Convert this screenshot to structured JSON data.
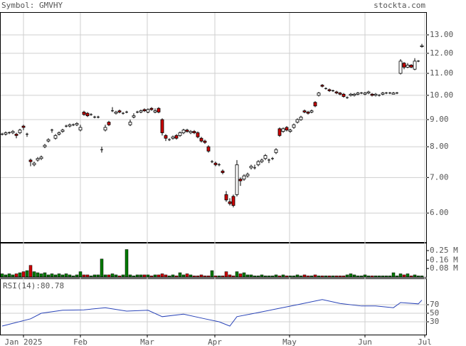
{
  "chart_data": {
    "type": "candlestick",
    "title": "Symbol: GMVHY",
    "source": "stockta.com",
    "xlim": [
      -0.6,
      119.4
    ],
    "xticks": [
      {
        "value": 6,
        "label": "Jan 2025"
      },
      {
        "value": 22,
        "label": "Feb"
      },
      {
        "value": 40.8,
        "label": "Mar"
      },
      {
        "value": 59.8,
        "label": "Apr"
      },
      {
        "value": 80.8,
        "label": "May"
      },
      {
        "value": 102,
        "label": "Jun"
      },
      {
        "value": 118.8,
        "label": "Jul"
      }
    ],
    "ylim": [
      5.29,
      14.35
    ],
    "log": true,
    "grid": true,
    "yticks": [
      {
        "value": 13,
        "label": "13.00"
      },
      {
        "value": 12,
        "label": "12.00"
      },
      {
        "value": 11,
        "label": "11.00"
      },
      {
        "value": 10,
        "label": "10.00"
      },
      {
        "value": 9,
        "label": "9.00"
      },
      {
        "value": 8,
        "label": "8.00"
      },
      {
        "value": 7,
        "label": "7.00"
      },
      {
        "value": 6,
        "label": "6.00"
      }
    ],
    "up_color": "#ffffff",
    "down_color": "#cc0000",
    "candles": [
      [
        8.45,
        8.5,
        8.4,
        8.45
      ],
      [
        8.45,
        8.55,
        8.4,
        8.5
      ],
      [
        8.5,
        8.55,
        8.45,
        8.5
      ],
      [
        8.5,
        8.6,
        8.45,
        8.55
      ],
      [
        8.45,
        8.5,
        8.3,
        8.4
      ],
      [
        8.5,
        8.65,
        8.45,
        8.6
      ],
      [
        8.75,
        8.8,
        8.6,
        8.7
      ],
      [
        8.45,
        8.5,
        8.35,
        8.45
      ],
      [
        7.55,
        7.6,
        7.35,
        7.5
      ],
      [
        7.4,
        7.5,
        7.35,
        7.45
      ],
      [
        7.55,
        7.65,
        7.5,
        7.6
      ],
      [
        7.6,
        7.7,
        7.55,
        7.65
      ],
      [
        8.0,
        8.1,
        7.95,
        8.05
      ],
      [
        8.2,
        8.3,
        8.15,
        8.25
      ],
      [
        8.6,
        8.65,
        8.5,
        8.6
      ],
      [
        8.3,
        8.45,
        8.25,
        8.4
      ],
      [
        8.45,
        8.55,
        8.4,
        8.5
      ],
      [
        8.55,
        8.65,
        8.5,
        8.6
      ],
      [
        8.75,
        8.8,
        8.7,
        8.75
      ],
      [
        8.75,
        8.85,
        8.7,
        8.8
      ],
      [
        8.8,
        8.85,
        8.75,
        8.8
      ],
      [
        8.8,
        8.9,
        8.75,
        8.85
      ],
      [
        8.6,
        8.8,
        8.55,
        8.7
      ],
      [
        9.3,
        9.35,
        9.15,
        9.2
      ],
      [
        9.25,
        9.3,
        9.1,
        9.15
      ],
      [
        9.2,
        9.25,
        9.15,
        9.2
      ],
      [
        9.1,
        9.15,
        9.05,
        9.1
      ],
      [
        9.1,
        9.15,
        9.05,
        9.1
      ],
      [
        7.9,
        8.0,
        7.8,
        7.9
      ],
      [
        8.6,
        8.8,
        8.55,
        8.7
      ],
      [
        8.9,
        8.95,
        8.75,
        8.8
      ],
      [
        9.35,
        9.5,
        9.3,
        9.35
      ],
      [
        9.25,
        9.35,
        9.2,
        9.3
      ],
      [
        9.35,
        9.4,
        9.25,
        9.3
      ],
      [
        9.25,
        9.3,
        9.2,
        9.25
      ],
      [
        9.3,
        9.35,
        9.25,
        9.3
      ],
      [
        8.8,
        9.0,
        8.75,
        8.9
      ],
      [
        9.1,
        9.25,
        9.05,
        9.15
      ],
      [
        9.3,
        9.35,
        9.25,
        9.3
      ],
      [
        9.3,
        9.4,
        9.25,
        9.35
      ],
      [
        9.4,
        9.45,
        9.3,
        9.35
      ],
      [
        9.3,
        9.45,
        9.25,
        9.4
      ],
      [
        9.45,
        9.5,
        9.35,
        9.4
      ],
      [
        9.3,
        9.45,
        9.25,
        9.35
      ],
      [
        9.45,
        9.5,
        9.25,
        9.3
      ],
      [
        9.0,
        9.05,
        8.4,
        8.5
      ],
      [
        8.4,
        8.45,
        8.2,
        8.3
      ],
      [
        8.25,
        8.3,
        8.2,
        8.25
      ],
      [
        8.3,
        8.4,
        8.25,
        8.35
      ],
      [
        8.4,
        8.45,
        8.25,
        8.3
      ],
      [
        8.4,
        8.55,
        8.35,
        8.5
      ],
      [
        8.5,
        8.65,
        8.45,
        8.6
      ],
      [
        8.6,
        8.65,
        8.5,
        8.55
      ],
      [
        8.5,
        8.6,
        8.45,
        8.55
      ],
      [
        8.55,
        8.6,
        8.45,
        8.5
      ],
      [
        8.5,
        8.55,
        8.3,
        8.35
      ],
      [
        8.3,
        8.35,
        8.15,
        8.2
      ],
      [
        8.2,
        8.25,
        8.1,
        8.15
      ],
      [
        8.0,
        8.05,
        7.8,
        7.85
      ],
      [
        7.5,
        7.55,
        7.45,
        7.5
      ],
      [
        7.45,
        7.5,
        7.35,
        7.4
      ],
      [
        7.4,
        7.45,
        7.35,
        7.4
      ],
      [
        7.2,
        7.25,
        7.1,
        7.15
      ],
      [
        6.5,
        6.6,
        6.3,
        6.35
      ],
      [
        6.3,
        6.4,
        6.2,
        6.25
      ],
      [
        6.45,
        6.5,
        6.15,
        6.2
      ],
      [
        6.5,
        7.55,
        6.45,
        7.4
      ],
      [
        6.95,
        7.0,
        6.75,
        6.9
      ],
      [
        6.95,
        7.1,
        6.9,
        7.05
      ],
      [
        7.05,
        7.15,
        7.0,
        7.1
      ],
      [
        7.3,
        7.4,
        7.25,
        7.35
      ],
      [
        7.3,
        7.4,
        7.25,
        7.3
      ],
      [
        7.4,
        7.55,
        7.35,
        7.5
      ],
      [
        7.5,
        7.6,
        7.45,
        7.55
      ],
      [
        7.6,
        7.75,
        7.55,
        7.7
      ],
      [
        7.55,
        7.6,
        7.45,
        7.55
      ],
      [
        7.6,
        7.65,
        7.55,
        7.6
      ],
      [
        7.8,
        7.95,
        7.75,
        7.9
      ],
      [
        8.65,
        8.7,
        8.35,
        8.4
      ],
      [
        8.55,
        8.7,
        8.5,
        8.65
      ],
      [
        8.7,
        8.75,
        8.55,
        8.6
      ],
      [
        8.55,
        8.65,
        8.5,
        8.6
      ],
      [
        8.7,
        8.85,
        8.65,
        8.8
      ],
      [
        8.9,
        9.05,
        8.85,
        9.0
      ],
      [
        9.0,
        9.15,
        8.95,
        9.1
      ],
      [
        9.35,
        9.4,
        9.25,
        9.3
      ],
      [
        9.3,
        9.35,
        9.2,
        9.25
      ],
      [
        9.3,
        9.4,
        9.25,
        9.35
      ],
      [
        9.7,
        9.75,
        9.5,
        9.55
      ],
      [
        10.0,
        10.15,
        9.95,
        10.1
      ],
      [
        10.45,
        10.5,
        10.35,
        10.4
      ],
      [
        10.3,
        10.35,
        10.25,
        10.3
      ],
      [
        10.25,
        10.3,
        10.15,
        10.2
      ],
      [
        10.2,
        10.25,
        10.15,
        10.2
      ],
      [
        10.15,
        10.2,
        10.05,
        10.1
      ],
      [
        10.1,
        10.15,
        10.0,
        10.05
      ],
      [
        10.05,
        10.1,
        9.9,
        9.95
      ],
      [
        9.9,
        9.95,
        9.85,
        9.9
      ],
      [
        10.0,
        10.1,
        9.95,
        10.05
      ],
      [
        10.0,
        10.1,
        9.95,
        10.05
      ],
      [
        10.05,
        10.15,
        10.0,
        10.1
      ],
      [
        10.1,
        10.15,
        10.05,
        10.1
      ],
      [
        10.05,
        10.15,
        10.0,
        10.1
      ],
      [
        10.1,
        10.2,
        10.05,
        10.15
      ],
      [
        10.05,
        10.1,
        9.95,
        10.0
      ],
      [
        10.0,
        10.1,
        9.95,
        10.05
      ],
      [
        10.0,
        10.05,
        9.95,
        10.0
      ],
      [
        10.05,
        10.15,
        10.0,
        10.1
      ],
      [
        10.1,
        10.15,
        10.05,
        10.1
      ],
      [
        10.1,
        10.15,
        10.05,
        10.1
      ],
      [
        10.05,
        10.15,
        10.05,
        10.1
      ],
      [
        10.1,
        10.15,
        10.05,
        10.1
      ],
      [
        11.0,
        11.7,
        10.95,
        11.6
      ],
      [
        11.5,
        11.55,
        11.2,
        11.3
      ],
      [
        11.3,
        11.5,
        11.25,
        11.4
      ],
      [
        11.4,
        11.45,
        11.25,
        11.3
      ],
      [
        11.2,
        11.75,
        11.15,
        11.6
      ],
      [
        11.6,
        11.65,
        11.55,
        11.6
      ],
      [
        12.35,
        12.5,
        12.3,
        12.4
      ]
    ],
    "volume": {
      "ylim": [
        0,
        0.324
      ],
      "up_color": "#007a00",
      "down_color": "#cc0000",
      "yticks": [
        {
          "value": 0.25,
          "label": "0.25 M"
        },
        {
          "value": 0.16,
          "label": "0.16 M"
        },
        {
          "value": 0.08,
          "label": "0.08 M"
        }
      ],
      "values": [
        0.03,
        0.02,
        0.03,
        0.02,
        0.03,
        0.04,
        0.05,
        0.06,
        0.11,
        0.05,
        0.04,
        0.03,
        0.04,
        0.02,
        0.03,
        0.02,
        0.03,
        0.02,
        0.03,
        0.02,
        0.01,
        0.02,
        0.05,
        0.02,
        0.02,
        0.01,
        0.02,
        0.02,
        0.17,
        0.02,
        0.02,
        0.03,
        0.02,
        0.01,
        0.02,
        0.26,
        0.02,
        0.01,
        0.02,
        0.02,
        0.02,
        0.02,
        0.01,
        0.02,
        0.02,
        0.03,
        0.02,
        0.01,
        0.02,
        0.01,
        0.04,
        0.02,
        0.03,
        0.02,
        0.01,
        0.01,
        0.02,
        0.01,
        0.01,
        0.06,
        0.01,
        0.01,
        0.01,
        0.05,
        0.02,
        0.01,
        0.05,
        0.03,
        0.04,
        0.02,
        0.02,
        0.01,
        0.01,
        0.02,
        0.01,
        0.01,
        0.01,
        0.02,
        0.01,
        0.02,
        0.01,
        0.01,
        0.01,
        0.02,
        0.01,
        0.02,
        0.01,
        0.01,
        0.02,
        0.01,
        0.01,
        0.01,
        0.01,
        0.01,
        0.01,
        0.01,
        0.01,
        0.02,
        0.03,
        0.02,
        0.01,
        0.01,
        0.02,
        0.01,
        0.01,
        0.01,
        0.01,
        0.01,
        0.01,
        0.01,
        0.04,
        0.01,
        0.03,
        0.02,
        0.03,
        0.01,
        0.02,
        0.01,
        0.01
      ]
    },
    "rsi": {
      "name": "RSI(14):",
      "color": "#2a44b8",
      "ylim": [
        0,
        131.7
      ],
      "yticks": [
        70,
        50,
        30
      ],
      "x": [
        0,
        8,
        11,
        17,
        23,
        29,
        35,
        41,
        45,
        51,
        57,
        61,
        64,
        66,
        71,
        77,
        83,
        90,
        95,
        101,
        105,
        110,
        112,
        117,
        118
      ],
      "values": [
        20,
        37,
        50,
        57,
        58,
        63,
        55,
        57,
        42,
        48,
        37,
        30,
        20,
        42,
        50,
        60,
        70,
        82,
        73,
        67,
        67,
        63,
        75,
        72,
        80.78
      ]
    }
  }
}
